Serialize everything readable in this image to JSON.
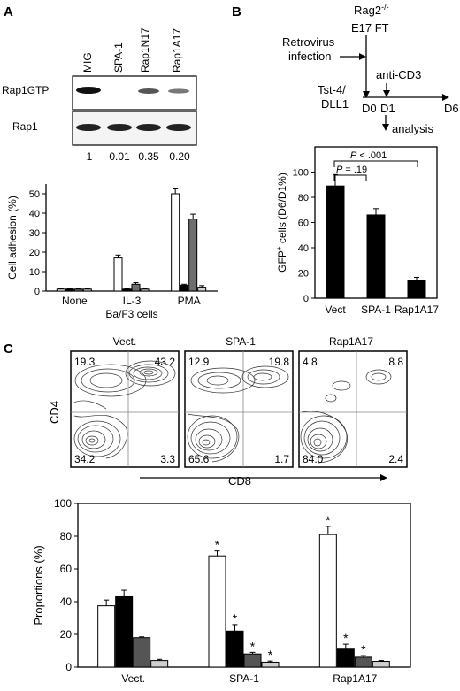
{
  "panels": {
    "A": {
      "label": "A",
      "blot": {
        "lanes": [
          "MIG",
          "SPA-1",
          "Rap1N17",
          "Rap1A17"
        ],
        "rows": [
          "Rap1GTP",
          "Rap1"
        ],
        "quant": [
          "1",
          "0.01",
          "0.35",
          "0.20"
        ]
      }
    },
    "B": {
      "label": "B",
      "scheme": {
        "mouse": "Rag2",
        "mouse_sup": "-/-",
        "source": "E17 FT",
        "step1_a": "Retrovirus",
        "step1_b": "infection",
        "step2": "anti-CD3",
        "culture_a": "Tst-4/",
        "culture_b": "DLL1",
        "d0": "D0",
        "d1": "D1",
        "d6": "D6",
        "analysis": "analysis"
      },
      "p1_lhs": "P",
      "p1_rhs": " = .19",
      "p2_lhs": "P",
      "p2_rhs": " < .001"
    },
    "C": {
      "label": "C",
      "flow_titles": [
        "Vect.",
        "SPA-1",
        "Rap1A17"
      ],
      "quadrants": [
        [
          "19.3",
          "43.2",
          "34.2",
          "3.3"
        ],
        [
          "12.9",
          "19.8",
          "65.6",
          "1.7"
        ],
        [
          "4.8",
          "8.8",
          "84.0",
          "2.4"
        ]
      ],
      "ylab": "CD4",
      "xlab": "CD8"
    }
  },
  "chart_data": [
    {
      "type": "bar",
      "panel": "A",
      "categories": [
        "None",
        "IL-3",
        "PMA"
      ],
      "series": [
        {
          "color": "#ffffff",
          "values": [
            1,
            17,
            50
          ],
          "errors": [
            0.3,
            1.5,
            2.5
          ]
        },
        {
          "color": "#000000",
          "values": [
            1,
            1,
            3
          ],
          "errors": [
            0.3,
            0.3,
            0.5
          ]
        },
        {
          "color": "#6e6e6e",
          "values": [
            1,
            3.5,
            37
          ],
          "errors": [
            0.3,
            0.8,
            2.5
          ]
        },
        {
          "color": "#d2d2d2",
          "values": [
            1,
            1,
            2
          ],
          "errors": [
            0.3,
            0.3,
            0.8
          ]
        }
      ],
      "ylabel": "Cell adhesion (%)",
      "xlabel": "Ba/F3 cells",
      "ylim": [
        0,
        55
      ],
      "yticks": [
        0,
        10,
        20,
        30,
        40,
        50
      ]
    },
    {
      "type": "bar",
      "panel": "B",
      "categories": [
        "Vect",
        "SPA-1",
        "Rap1A17"
      ],
      "values": [
        89,
        66,
        14
      ],
      "errors": [
        9,
        5,
        2.5
      ],
      "ylabel": "GFP+ cells (D6/D1%)",
      "ylim": [
        0,
        120
      ],
      "yticks": [
        0,
        20,
        40,
        60,
        80,
        100
      ]
    },
    {
      "type": "bar",
      "panel": "C",
      "categories": [
        "Vect.",
        "SPA-1",
        "Rap1A17"
      ],
      "series": [
        {
          "color": "#ffffff",
          "values": [
            37.5,
            68,
            81
          ],
          "errors": [
            3.5,
            3,
            5
          ],
          "stars": [
            false,
            true,
            true
          ]
        },
        {
          "color": "#000000",
          "values": [
            43,
            22,
            11.5
          ],
          "errors": [
            4,
            4,
            2.5
          ],
          "stars": [
            false,
            true,
            true
          ]
        },
        {
          "color": "#555555",
          "values": [
            18,
            8,
            6
          ],
          "errors": [
            0.5,
            1,
            1
          ],
          "stars": [
            false,
            true,
            true
          ]
        },
        {
          "color": "#cfcfcf",
          "values": [
            4,
            3,
            3.5
          ],
          "errors": [
            0.7,
            0.7,
            0.5
          ],
          "stars": [
            false,
            true,
            false
          ]
        }
      ],
      "ylabel": "Proportions (%)",
      "ylim": [
        0,
        100
      ],
      "yticks": [
        0,
        20,
        40,
        60,
        80,
        100
      ]
    }
  ]
}
